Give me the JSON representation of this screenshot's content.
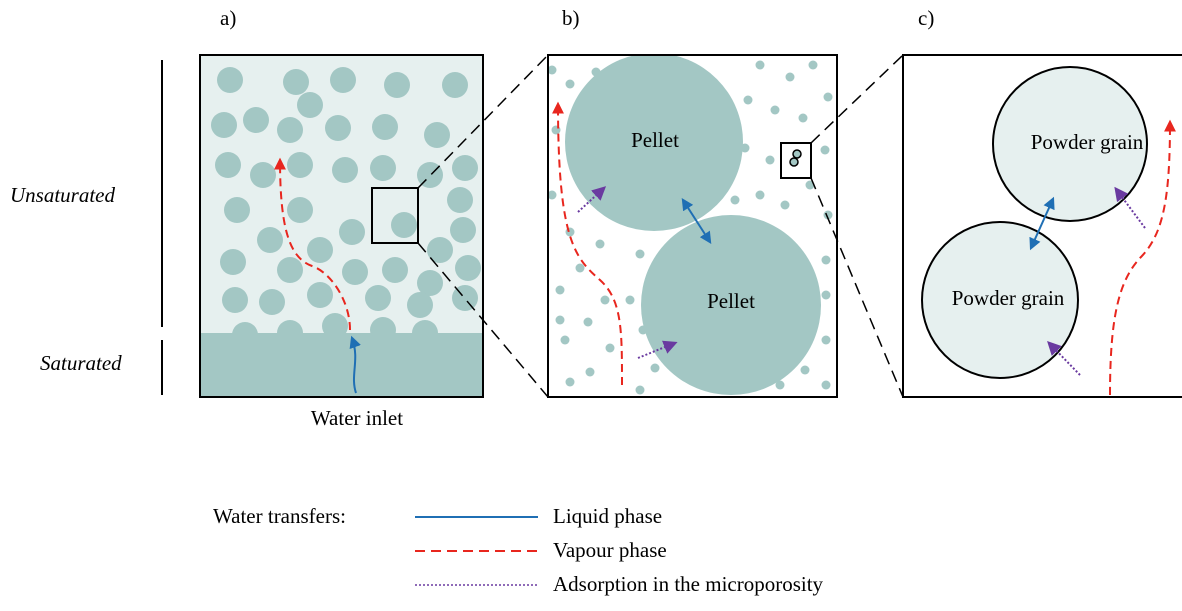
{
  "panel_a": {
    "label": "a)",
    "zones": [
      "Unsaturated",
      "Saturated"
    ],
    "inlet": "Water inlet"
  },
  "panel_b": {
    "label": "b)",
    "pellets": [
      "Pellet",
      "Pellet"
    ]
  },
  "panel_c": {
    "label": "c)",
    "grains": [
      "Powder grain",
      "Powder grain"
    ]
  },
  "legend": {
    "title": "Water transfers:",
    "items": [
      "Liquid phase",
      "Vapour phase",
      "Adsorption in the microporosity"
    ]
  }
}
